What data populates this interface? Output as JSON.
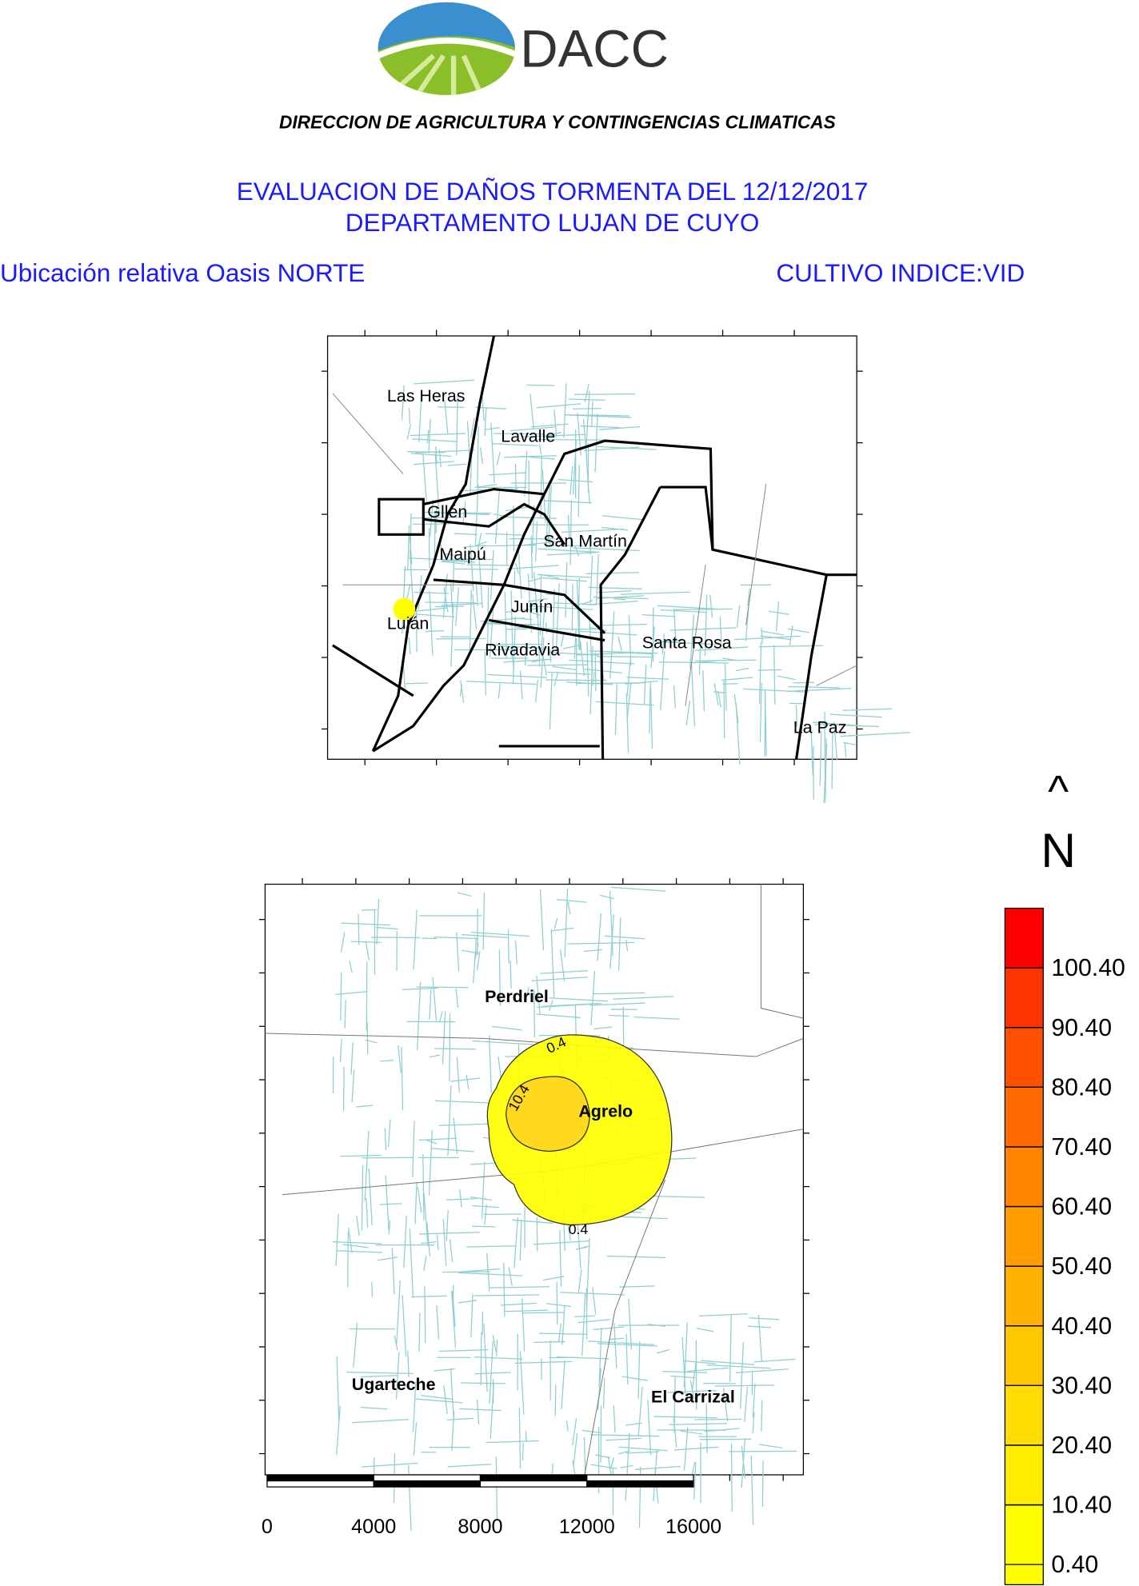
{
  "header": {
    "logo_text": "DACC",
    "org": "DIRECCION DE AGRICULTURA Y CONTINGENCIAS CLIMATICAS",
    "title": [
      "EVALUACION DE DAÑOS TORMENTA DEL 12/12/2017",
      "DEPARTAMENTO LUJAN DE CUYO"
    ],
    "left_caption": "Ubicación relativa Oasis NORTE",
    "right_caption": "CULTIVO INDICE:VID"
  },
  "inset_map": {
    "labels": [
      "Las Heras",
      "Lavalle",
      "Gllén",
      "Maipú",
      "San Martín",
      "Junín",
      "Luján",
      "Rivadavia",
      "Santa Rosa",
      "La Paz"
    ]
  },
  "main_map": {
    "labels": [
      "Perdriel",
      "Agrelo",
      "Ugarteche",
      "El Carrizal"
    ],
    "contour_labels": [
      "0.4",
      "10.4",
      "0.4"
    ]
  },
  "scale_bar": {
    "ticks": [
      0,
      4000,
      8000,
      12000,
      16000
    ]
  },
  "north": {
    "arrow": "^",
    "label": "N"
  },
  "legend": {
    "breaks": [
      {
        "value": 0.4,
        "label": "0.40"
      },
      {
        "value": 10.4,
        "label": "10.40"
      },
      {
        "value": 20.4,
        "label": "20.40"
      },
      {
        "value": 30.4,
        "label": "30.40"
      },
      {
        "value": 40.4,
        "label": "40.40"
      },
      {
        "value": 50.4,
        "label": "50.40"
      },
      {
        "value": 60.4,
        "label": "60.40"
      },
      {
        "value": 70.4,
        "label": "70.40"
      },
      {
        "value": 80.4,
        "label": "80.40"
      },
      {
        "value": 90.4,
        "label": "90.40"
      },
      {
        "value": 100.4,
        "label": "100.40"
      }
    ],
    "colors": [
      "#ffff00",
      "#ffee00",
      "#ffdd00",
      "#ffc800",
      "#ffb300",
      "#ff9c00",
      "#ff8400",
      "#ff6a00",
      "#ff5000",
      "#ff3300",
      "#ff0000"
    ]
  }
}
